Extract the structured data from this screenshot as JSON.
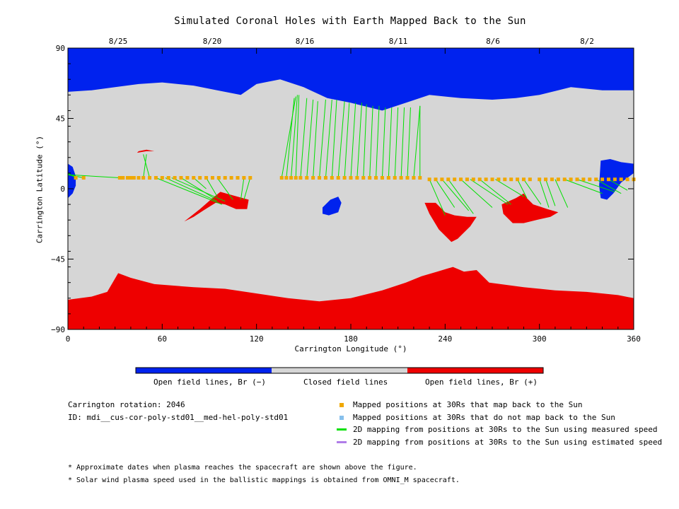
{
  "chart_data": {
    "type": "map",
    "title": "Simulated Coronal Holes with Earth Mapped Back to the Sun",
    "xlabel": "Carrington Longitude (°)",
    "ylabel": "Carrington Latitude (°)",
    "xlim": [
      0,
      360
    ],
    "ylim": [
      -90,
      90
    ],
    "x_ticks": [
      "0",
      "60",
      "120",
      "180",
      "240",
      "300",
      "360"
    ],
    "y_ticks": [
      "90",
      "45",
      "0",
      "-45",
      "-90"
    ],
    "top_axis_dates": [
      "8/25",
      "8/20",
      "8/16",
      "8/11",
      "8/6",
      "8/2"
    ],
    "regions": {
      "north_polar_hole": {
        "polarity": "negative",
        "boundary": [
          [
            0,
            62
          ],
          [
            15,
            63
          ],
          [
            30,
            65
          ],
          [
            45,
            67
          ],
          [
            60,
            68
          ],
          [
            80,
            66
          ],
          [
            95,
            63
          ],
          [
            110,
            60
          ],
          [
            120,
            67
          ],
          [
            135,
            70
          ],
          [
            150,
            65
          ],
          [
            165,
            58
          ],
          [
            180,
            55
          ],
          [
            200,
            50
          ],
          [
            215,
            55
          ],
          [
            230,
            60
          ],
          [
            250,
            58
          ],
          [
            270,
            57
          ],
          [
            285,
            58
          ],
          [
            300,
            60
          ],
          [
            320,
            65
          ],
          [
            340,
            63
          ],
          [
            360,
            63
          ]
        ]
      },
      "south_polar_hole": {
        "polarity": "positive",
        "boundary": [
          [
            0,
            -71
          ],
          [
            15,
            -69
          ],
          [
            25,
            -66
          ],
          [
            32,
            -54
          ],
          [
            40,
            -57
          ],
          [
            55,
            -61
          ],
          [
            80,
            -63
          ],
          [
            100,
            -64
          ],
          [
            120,
            -67
          ],
          [
            140,
            -70
          ],
          [
            160,
            -72
          ],
          [
            180,
            -70
          ],
          [
            200,
            -65
          ],
          [
            215,
            -60
          ],
          [
            225,
            -56
          ],
          [
            235,
            -53
          ],
          [
            245,
            -50
          ],
          [
            252,
            -53
          ],
          [
            260,
            -52
          ],
          [
            268,
            -60
          ],
          [
            290,
            -63
          ],
          [
            310,
            -65
          ],
          [
            330,
            -66
          ],
          [
            350,
            -68
          ],
          [
            360,
            -70
          ]
        ]
      }
    },
    "series": [
      {
        "name": "Mapped positions at 30Rs that map back to the Sun",
        "color": "#f0a800",
        "marker": "square",
        "x": [
          5,
          10,
          33,
          35,
          38,
          40,
          42,
          45,
          48,
          52,
          56,
          60,
          64,
          68,
          72,
          76,
          80,
          84,
          88,
          92,
          96,
          100,
          104,
          108,
          112,
          116,
          136,
          139,
          142,
          145,
          148,
          152,
          156,
          160,
          164,
          168,
          172,
          176,
          180,
          184,
          188,
          192,
          196,
          200,
          204,
          208,
          212,
          216,
          220,
          224,
          230,
          234,
          238,
          242,
          246,
          250,
          254,
          258,
          262,
          266,
          270,
          274,
          278,
          282,
          286,
          290,
          294,
          300,
          304,
          308,
          312,
          316,
          320,
          324,
          328,
          332,
          336,
          340,
          344,
          348,
          352,
          356,
          360
        ],
        "y": [
          7,
          7,
          7,
          7,
          7,
          7,
          7,
          7,
          7,
          7,
          7,
          7,
          7,
          7,
          7,
          7,
          7,
          7,
          7,
          7,
          7,
          7,
          7,
          7,
          7,
          7,
          7,
          7,
          7,
          7,
          7,
          7,
          7,
          7,
          7,
          7,
          7,
          7,
          7,
          7,
          7,
          7,
          7,
          7,
          7,
          7,
          7,
          7,
          7,
          7,
          6,
          6,
          6,
          6,
          6,
          6,
          6,
          6,
          6,
          6,
          6,
          6,
          6,
          6,
          6,
          6,
          6,
          6,
          6,
          6,
          6,
          6,
          6,
          6,
          6,
          6,
          6,
          6,
          6,
          6,
          6,
          6,
          6
        ]
      },
      {
        "name": "Mapped positions at 30Rs that do not map back to the Sun",
        "color": "#87c0ec",
        "marker": "square",
        "x": [],
        "y": []
      },
      {
        "name": "2D mapping from positions at 30Rs to the Sun using measured speed",
        "color": "#00e000",
        "line": true,
        "segments": [
          [
            5,
            7,
            0,
            10
          ],
          [
            10,
            7,
            0,
            9
          ],
          [
            33,
            7,
            0,
            9
          ],
          [
            48,
            7,
            50,
            22
          ],
          [
            52,
            7,
            48,
            22
          ],
          [
            56,
            7,
            98,
            -10
          ],
          [
            62,
            7,
            95,
            -8
          ],
          [
            66,
            7,
            100,
            -8
          ],
          [
            72,
            7,
            93,
            -6
          ],
          [
            80,
            7,
            88,
            0
          ],
          [
            88,
            7,
            95,
            -5
          ],
          [
            95,
            7,
            105,
            -7
          ],
          [
            112,
            7,
            110,
            -7
          ],
          [
            116,
            7,
            112,
            -7
          ],
          [
            136,
            7,
            145,
            59
          ],
          [
            139,
            7,
            144,
            58
          ],
          [
            142,
            7,
            146,
            60
          ],
          [
            145,
            7,
            147,
            60
          ],
          [
            148,
            7,
            152,
            58
          ],
          [
            152,
            7,
            156,
            57
          ],
          [
            156,
            7,
            159,
            56
          ],
          [
            160,
            7,
            164,
            57
          ],
          [
            164,
            7,
            168,
            57
          ],
          [
            168,
            7,
            171,
            57
          ],
          [
            172,
            7,
            176,
            56
          ],
          [
            176,
            7,
            179,
            55
          ],
          [
            180,
            7,
            183,
            55
          ],
          [
            184,
            7,
            187,
            55
          ],
          [
            188,
            7,
            190,
            54
          ],
          [
            192,
            7,
            194,
            53
          ],
          [
            196,
            7,
            198,
            53
          ],
          [
            200,
            7,
            202,
            52
          ],
          [
            204,
            7,
            206,
            52
          ],
          [
            208,
            7,
            210,
            52
          ],
          [
            212,
            7,
            214,
            52
          ],
          [
            216,
            7,
            218,
            52
          ],
          [
            220,
            7,
            224,
            53
          ],
          [
            224,
            7,
            224,
            53
          ],
          [
            230,
            6,
            240,
            -17
          ],
          [
            234,
            6,
            246,
            -12
          ],
          [
            238,
            6,
            255,
            -14
          ],
          [
            242,
            6,
            258,
            -16
          ],
          [
            250,
            6,
            270,
            -12
          ],
          [
            256,
            6,
            280,
            -10
          ],
          [
            262,
            6,
            282,
            -10
          ],
          [
            272,
            6,
            290,
            -5
          ],
          [
            286,
            6,
            292,
            -6
          ],
          [
            290,
            6,
            301,
            -10
          ],
          [
            300,
            6,
            306,
            -12
          ],
          [
            304,
            6,
            310,
            -11
          ],
          [
            310,
            6,
            318,
            -12
          ],
          [
            316,
            6,
            340,
            -3
          ],
          [
            324,
            6,
            348,
            -2
          ],
          [
            336,
            6,
            352,
            -3
          ],
          [
            344,
            6,
            356,
            -1
          ]
        ]
      },
      {
        "name": "2D mapping from positions at 30Rs to the Sun using estimated speed",
        "color": "#b07de8",
        "line": true,
        "segments": []
      }
    ]
  },
  "colorbar": {
    "segments": [
      {
        "label": "Open field lines, Br (−)",
        "color": "#0022ee"
      },
      {
        "label": "Closed field lines",
        "color": "#d6d6d6"
      },
      {
        "label": "Open field lines, Br (+)",
        "color": "#ee0000"
      }
    ]
  },
  "info": {
    "rotation": "Carrington rotation: 2046",
    "id": "ID: mdi__cus-cor-poly-std01__med-hel-poly-std01"
  },
  "legend": {
    "mapped": "Mapped positions at 30Rs that map back to the Sun",
    "not_mapped": "Mapped positions at 30Rs that do not map back to the Sun",
    "measured": "2D mapping from positions at 30Rs to the Sun using measured speed",
    "estimated": "2D mapping from positions at 30Rs to the Sun using estimated speed"
  },
  "notes": {
    "n1": "* Approximate dates when plasma reaches the spacecraft are shown above the figure.",
    "n2": "* Solar wind plasma speed used in the ballistic mappings is obtained from OMNI_M spacecraft."
  },
  "colors": {
    "negative": "#0022ee",
    "positive": "#ee0000",
    "closed": "#d6d6d6",
    "mapped": "#f0a800",
    "not_mapped": "#87c0ec",
    "measured": "#00e000",
    "estimated": "#b07de8"
  }
}
